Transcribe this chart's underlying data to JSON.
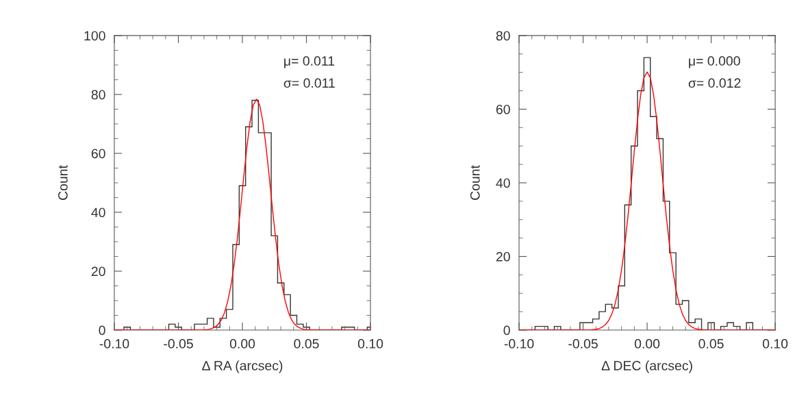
{
  "chart_data": [
    {
      "type": "histogram",
      "xlabel": "Δ RA (arcsec)",
      "ylabel": "Count",
      "annotations": [
        "μ= 0.011",
        "σ= 0.011"
      ],
      "bins": [
        -0.0975,
        -0.0925,
        -0.0875,
        -0.0825,
        -0.0775,
        -0.0725,
        -0.0675,
        -0.0625,
        -0.0575,
        -0.0525,
        -0.0475,
        -0.0425,
        -0.0375,
        -0.0325,
        -0.0275,
        -0.0225,
        -0.0175,
        -0.0125,
        -0.0075,
        -0.0025,
        0.0025,
        0.0075,
        0.0125,
        0.0175,
        0.0225,
        0.0275,
        0.0325,
        0.0375,
        0.0425,
        0.0475,
        0.0525,
        0.0575,
        0.0625,
        0.0675,
        0.0725,
        0.0775,
        0.0825,
        0.0875,
        0.0925,
        0.0975,
        0.1025
      ],
      "series": [
        {
          "color": "#333333",
          "values": [
            0,
            1,
            0,
            0,
            0,
            0,
            0,
            0,
            2,
            1,
            0,
            0,
            2,
            2,
            4,
            1,
            4,
            7,
            29,
            49,
            69,
            78,
            67,
            67,
            32,
            16,
            12,
            5,
            2,
            1,
            0,
            0,
            0,
            0,
            0,
            1,
            1,
            0,
            0,
            1
          ]
        },
        {
          "type": "line",
          "color": "#ff0000",
          "x": [
            -0.1,
            -0.0315,
            -0.029,
            -0.0265,
            -0.024,
            -0.0215,
            -0.019,
            -0.0165,
            -0.014,
            -0.0115,
            -0.009,
            -0.0065,
            -0.004,
            -0.0015,
            0.001,
            0.0035,
            0.006,
            0.0085,
            0.011,
            0.0135,
            0.016,
            0.0185,
            0.021,
            0.0235,
            0.026,
            0.0285,
            0.031,
            0.0335,
            0.036,
            0.0385,
            0.041,
            0.0435,
            0.046,
            0.0485,
            0.051,
            0.0535,
            0.1
          ],
          "values": [
            0,
            0,
            0.1,
            0.2,
            0.5,
            1.0,
            1.9,
            3.4,
            5.9,
            9.7,
            15.0,
            22.1,
            30.9,
            41.1,
            51.9,
            62.1,
            70.7,
            76.4,
            78.4,
            76.4,
            70.7,
            62.1,
            51.9,
            41.1,
            30.9,
            22.1,
            15.0,
            9.7,
            5.9,
            3.4,
            1.9,
            1.0,
            0.5,
            0.2,
            0.1,
            0,
            0
          ]
        }
      ],
      "xlim": [
        -0.1,
        0.1
      ],
      "ylim": [
        0,
        100
      ],
      "xticks": [
        {
          "value": -0.1,
          "label": "-0.10"
        },
        {
          "value": -0.09,
          "label": null
        },
        {
          "value": -0.08,
          "label": null
        },
        {
          "value": -0.07,
          "label": null
        },
        {
          "value": -0.06,
          "label": null
        },
        {
          "value": -0.05,
          "label": "-0.05"
        },
        {
          "value": -0.04,
          "label": null
        },
        {
          "value": -0.03,
          "label": null
        },
        {
          "value": -0.02,
          "label": null
        },
        {
          "value": -0.01,
          "label": null
        },
        {
          "value": 0,
          "label": "0.00"
        },
        {
          "value": 0.01,
          "label": null
        },
        {
          "value": 0.02,
          "label": null
        },
        {
          "value": 0.03,
          "label": null
        },
        {
          "value": 0.04,
          "label": null
        },
        {
          "value": 0.05,
          "label": "0.05"
        },
        {
          "value": 0.06,
          "label": null
        },
        {
          "value": 0.07,
          "label": null
        },
        {
          "value": 0.08,
          "label": null
        },
        {
          "value": 0.09,
          "label": null
        },
        {
          "value": 0.1,
          "label": "0.10"
        }
      ],
      "yticks": [
        0,
        {
          "value": 5,
          "label": null
        },
        {
          "value": 10,
          "label": null
        },
        {
          "value": 15,
          "label": null
        },
        20,
        {
          "value": 25,
          "label": null
        },
        {
          "value": 30,
          "label": null
        },
        {
          "value": 35,
          "label": null
        },
        40,
        {
          "value": 45,
          "label": null
        },
        {
          "value": 50,
          "label": null
        },
        {
          "value": 55,
          "label": null
        },
        60,
        {
          "value": 65,
          "label": null
        },
        {
          "value": 70,
          "label": null
        },
        {
          "value": 75,
          "label": null
        },
        80,
        {
          "value": 85,
          "label": null
        },
        {
          "value": 90,
          "label": null
        },
        {
          "value": 95,
          "label": null
        },
        100
      ],
      "grid": false,
      "legend": false
    },
    {
      "type": "histogram",
      "xlabel": "Δ DEC (arcsec)",
      "ylabel": "Count",
      "annotations": [
        "μ= 0.000",
        "σ= 0.012"
      ],
      "bins": [
        -0.0975,
        -0.0925,
        -0.0875,
        -0.0825,
        -0.0775,
        -0.0725,
        -0.0675,
        -0.0625,
        -0.0575,
        -0.0525,
        -0.0475,
        -0.0425,
        -0.0375,
        -0.0325,
        -0.0275,
        -0.0225,
        -0.0175,
        -0.0125,
        -0.0075,
        -0.0025,
        0.0025,
        0.0075,
        0.0125,
        0.0175,
        0.0225,
        0.0275,
        0.0325,
        0.0375,
        0.0425,
        0.0475,
        0.0525,
        0.0575,
        0.0625,
        0.0675,
        0.0725,
        0.0775,
        0.0825,
        0.0875,
        0.0925,
        0.0975
      ],
      "series": [
        {
          "color": "#333333",
          "values": [
            0,
            0,
            1,
            1,
            0,
            1,
            0,
            0,
            0,
            2,
            2,
            3,
            5,
            7,
            6,
            12,
            34,
            50,
            65,
            74,
            58,
            52,
            35,
            21,
            7,
            8,
            2,
            3,
            0,
            2,
            0,
            1,
            2,
            1,
            0,
            2,
            0,
            0,
            0
          ]
        },
        {
          "type": "line",
          "color": "#ff0000",
          "x": [
            -0.1,
            -0.045,
            -0.0425,
            -0.04,
            -0.0375,
            -0.035,
            -0.0325,
            -0.03,
            -0.0275,
            -0.025,
            -0.0225,
            -0.02,
            -0.0175,
            -0.015,
            -0.0125,
            -0.01,
            -0.0075,
            -0.005,
            -0.0025,
            0,
            0.0025,
            0.005,
            0.0075,
            0.01,
            0.0125,
            0.015,
            0.0175,
            0.02,
            0.0225,
            0.025,
            0.0275,
            0.03,
            0.0325,
            0.035,
            0.0375,
            0.04,
            0.0425,
            0.045,
            0.1
          ],
          "values": [
            0,
            0,
            0.1,
            0.2,
            0.4,
            0.8,
            1.5,
            2.6,
            4.4,
            7.1,
            11.0,
            16.3,
            22.9,
            30.8,
            39.6,
            48.7,
            57.1,
            64.0,
            68.5,
            70.1,
            68.5,
            64.0,
            57.1,
            48.7,
            39.6,
            30.8,
            22.9,
            16.3,
            11.0,
            7.1,
            4.4,
            2.6,
            1.5,
            0.8,
            0.4,
            0.2,
            0.1,
            0,
            0
          ]
        }
      ],
      "xlim": [
        -0.1,
        0.1
      ],
      "ylim": [
        0,
        80
      ],
      "xticks": [
        {
          "value": -0.1,
          "label": "-0.10"
        },
        {
          "value": -0.09,
          "label": null
        },
        {
          "value": -0.08,
          "label": null
        },
        {
          "value": -0.07,
          "label": null
        },
        {
          "value": -0.06,
          "label": null
        },
        {
          "value": -0.05,
          "label": "-0.05"
        },
        {
          "value": -0.04,
          "label": null
        },
        {
          "value": -0.03,
          "label": null
        },
        {
          "value": -0.02,
          "label": null
        },
        {
          "value": -0.01,
          "label": null
        },
        {
          "value": 0,
          "label": "0.00"
        },
        {
          "value": 0.01,
          "label": null
        },
        {
          "value": 0.02,
          "label": null
        },
        {
          "value": 0.03,
          "label": null
        },
        {
          "value": 0.04,
          "label": null
        },
        {
          "value": 0.05,
          "label": "0.05"
        },
        {
          "value": 0.06,
          "label": null
        },
        {
          "value": 0.07,
          "label": null
        },
        {
          "value": 0.08,
          "label": null
        },
        {
          "value": 0.09,
          "label": null
        },
        {
          "value": 0.1,
          "label": "0.10"
        }
      ],
      "yticks": [
        0,
        {
          "value": 5,
          "label": null
        },
        {
          "value": 10,
          "label": null
        },
        {
          "value": 15,
          "label": null
        },
        20,
        {
          "value": 25,
          "label": null
        },
        {
          "value": 30,
          "label": null
        },
        {
          "value": 35,
          "label": null
        },
        40,
        {
          "value": 45,
          "label": null
        },
        {
          "value": 50,
          "label": null
        },
        {
          "value": 55,
          "label": null
        },
        60,
        {
          "value": 65,
          "label": null
        },
        {
          "value": 70,
          "label": null
        },
        {
          "value": 75,
          "label": null
        },
        80
      ],
      "grid": false,
      "legend": false
    }
  ]
}
